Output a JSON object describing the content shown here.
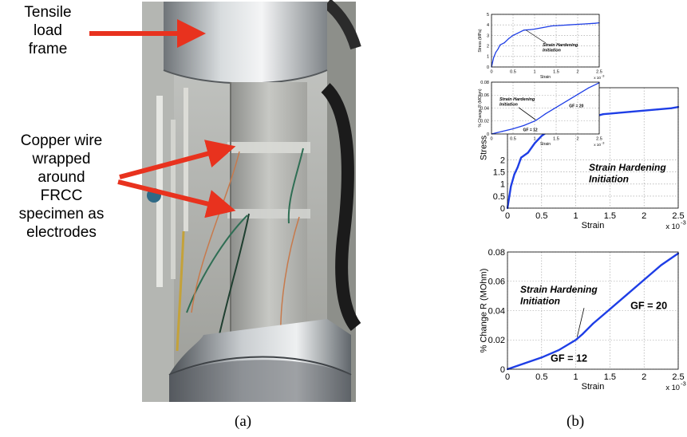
{
  "annotations": {
    "tensile": [
      "Tensile",
      "load",
      "frame"
    ],
    "copper": [
      "Copper wire",
      "wrapped",
      "around",
      "FRCC",
      "specimen as",
      "electrodes"
    ]
  },
  "captions": {
    "a": "(a)",
    "b": "(b)"
  },
  "colors": {
    "arrow": "#e8321e",
    "series": "#1e3ee6",
    "axis": "#000000",
    "grid": "#9a9a9a"
  },
  "chart_data": [
    {
      "id": "stress-small",
      "type": "line",
      "title": "",
      "xlabel": "Strain",
      "ylabel": "Stress (MPa)",
      "x_multiplier": "x 10",
      "x_exponent": "-3",
      "xlim": [
        0,
        2.5
      ],
      "ylim": [
        0,
        5
      ],
      "xticks": [
        0,
        0.5,
        1,
        1.5,
        2,
        2.5
      ],
      "yticks": [
        0,
        1,
        2,
        3,
        4,
        5
      ],
      "grid": true,
      "annotation": [
        "Strain Hardening",
        "Initiation"
      ],
      "series": [
        {
          "x": [
            0,
            0.05,
            0.1,
            0.15,
            0.2,
            0.3,
            0.4,
            0.5,
            0.6,
            0.75,
            0.9,
            1.0,
            1.2,
            1.4,
            1.6,
            1.8,
            2.0,
            2.2,
            2.4,
            2.5
          ],
          "y": [
            0,
            0.9,
            1.4,
            1.7,
            2.1,
            2.3,
            2.7,
            3.0,
            3.2,
            3.5,
            3.55,
            3.6,
            3.75,
            3.9,
            3.95,
            4.0,
            4.05,
            4.1,
            4.15,
            4.2
          ]
        }
      ]
    },
    {
      "id": "resistance-small",
      "type": "line",
      "title": "",
      "xlabel": "Strain",
      "ylabel": "% Change R (MOhm)",
      "x_multiplier": "x 10",
      "x_exponent": "-3",
      "xlim": [
        0,
        2.5
      ],
      "ylim": [
        0,
        0.08
      ],
      "xticks": [
        0,
        0.5,
        1,
        1.5,
        2,
        2.5
      ],
      "yticks": [
        0,
        0.02,
        0.04,
        0.06,
        0.08
      ],
      "grid": true,
      "annotation": [
        "Strain Hardening",
        "Initiation"
      ],
      "labels": [
        "GF = 20",
        "GF = 12"
      ],
      "series": [
        {
          "x": [
            0,
            0.25,
            0.5,
            0.75,
            1.0,
            1.1,
            1.25,
            1.5,
            1.75,
            2.0,
            2.25,
            2.5
          ],
          "y": [
            0,
            0.004,
            0.008,
            0.013,
            0.02,
            0.024,
            0.031,
            0.041,
            0.051,
            0.061,
            0.071,
            0.079
          ]
        }
      ]
    },
    {
      "id": "stress-large",
      "type": "line",
      "title": "",
      "xlabel": "Strain",
      "ylabel": "Stress",
      "x_multiplier": "x 10",
      "x_exponent": "-3",
      "xlim": [
        0,
        2.5
      ],
      "ylim": [
        0,
        5
      ],
      "xticks": [
        0,
        0.5,
        1,
        1.5,
        2,
        2.5
      ],
      "yticks": [
        0,
        0.5,
        1,
        1.5,
        2
      ],
      "grid": true,
      "annotation": [
        "Strain Hardening",
        "Initiation"
      ],
      "series": [
        {
          "x": [
            0,
            0.05,
            0.1,
            0.15,
            0.2,
            0.3,
            0.4,
            0.5,
            0.6,
            0.75,
            0.9,
            1.0,
            1.2,
            1.4,
            1.6,
            1.8,
            2.0,
            2.2,
            2.4,
            2.5
          ],
          "y": [
            0,
            0.9,
            1.4,
            1.7,
            2.1,
            2.3,
            2.7,
            3.0,
            3.2,
            3.5,
            3.55,
            3.6,
            3.75,
            3.9,
            3.95,
            4.0,
            4.05,
            4.1,
            4.15,
            4.2
          ]
        }
      ]
    },
    {
      "id": "resistance-large",
      "type": "line",
      "title": "",
      "xlabel": "Strain",
      "ylabel": "% Change R (MOhm)",
      "x_multiplier": "x 10",
      "x_exponent": "-3",
      "xlim": [
        0,
        2.5
      ],
      "ylim": [
        0,
        0.08
      ],
      "xticks": [
        0,
        0.5,
        1,
        1.5,
        2,
        2.5
      ],
      "yticks": [
        0,
        0.02,
        0.04,
        0.06,
        0.08
      ],
      "grid": true,
      "annotation": [
        "Strain Hardening",
        "Initiation"
      ],
      "labels": [
        "GF = 20",
        "GF = 12"
      ],
      "series": [
        {
          "x": [
            0,
            0.25,
            0.5,
            0.75,
            1.0,
            1.1,
            1.25,
            1.5,
            1.75,
            2.0,
            2.25,
            2.5
          ],
          "y": [
            0,
            0.004,
            0.008,
            0.013,
            0.02,
            0.024,
            0.031,
            0.041,
            0.051,
            0.061,
            0.071,
            0.079
          ]
        }
      ]
    }
  ]
}
